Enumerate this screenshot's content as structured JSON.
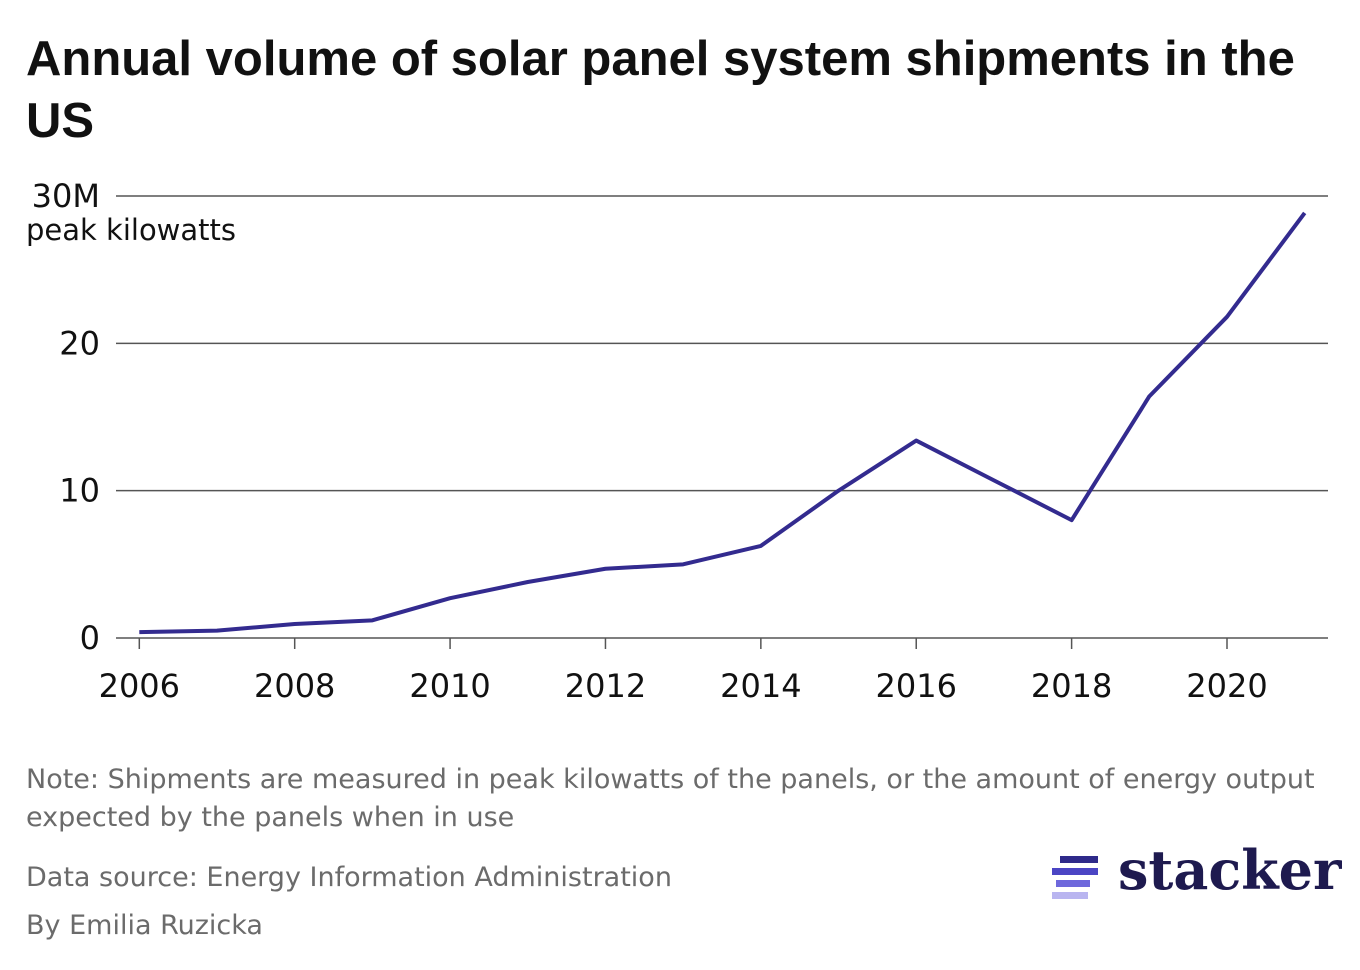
{
  "chart_data": {
    "type": "line",
    "title": "Annual volume of solar panel system shipments in the US",
    "y_label": "peak kilowatts",
    "x": [
      2006,
      2007,
      2008,
      2009,
      2010,
      2011,
      2012,
      2013,
      2014,
      2015,
      2016,
      2017,
      2018,
      2019,
      2020,
      2021
    ],
    "series": [
      {
        "name": "Shipments",
        "color": "#332b8f",
        "values": [
          0.4,
          0.5,
          0.95,
          1.2,
          2.7,
          3.8,
          4.7,
          5.0,
          6.25,
          10.0,
          13.4,
          10.7,
          8.0,
          16.4,
          21.8,
          28.85
        ]
      }
    ],
    "xlim": [
      2005.7,
      2021.3
    ],
    "xticks": [
      2006,
      2008,
      2010,
      2012,
      2014,
      2016,
      2018,
      2020
    ],
    "ylim": [
      0,
      30
    ],
    "yticks": [
      0,
      10,
      20,
      {
        "value": 30,
        "label": "30M"
      }
    ],
    "grid": true,
    "note": "Note: Shipments are measured in peak kilowatts of the panels, or the amount of energy output expected by the panels when in use",
    "source": "Data source: Energy Information Administration",
    "byline": "By Emilia Ruzicka",
    "logo": "stacker"
  }
}
